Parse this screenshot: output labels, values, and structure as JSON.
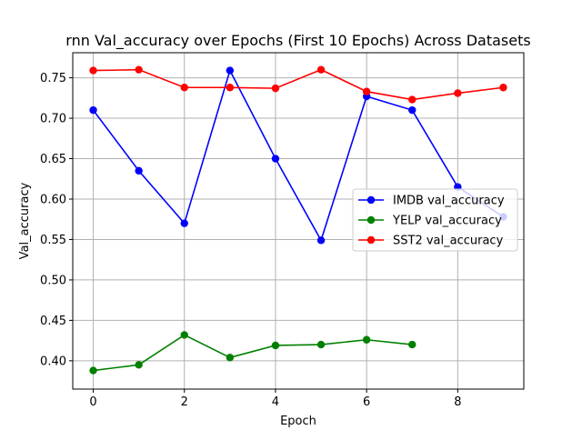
{
  "chart_data": {
    "type": "line",
    "title": "rnn Val_accuracy over Epochs (First 10 Epochs) Across Datasets",
    "xlabel": "Epoch",
    "ylabel": "Val_accuracy",
    "xlim": [
      -0.45,
      9.45
    ],
    "ylim": [
      0.365,
      0.781
    ],
    "xticks": [
      0,
      2,
      4,
      6,
      8
    ],
    "yticks": [
      0.4,
      0.45,
      0.5,
      0.55,
      0.6,
      0.65,
      0.7,
      0.75
    ],
    "grid": true,
    "legend_position": "center-right",
    "series": [
      {
        "name": "IMDB val_accuracy",
        "color": "#0000ff",
        "x": [
          0,
          1,
          2,
          3,
          4,
          5,
          6,
          7,
          8,
          9
        ],
        "values": [
          0.71,
          0.635,
          0.57,
          0.759,
          0.65,
          0.549,
          0.727,
          0.71,
          0.615,
          0.578
        ]
      },
      {
        "name": "YELP val_accuracy",
        "color": "#008000",
        "x": [
          0,
          1,
          2,
          3,
          4,
          5,
          6,
          7
        ],
        "values": [
          0.388,
          0.395,
          0.432,
          0.404,
          0.419,
          0.42,
          0.426,
          0.42
        ]
      },
      {
        "name": "SST2 val_accuracy",
        "color": "#ff0000",
        "x": [
          0,
          1,
          2,
          3,
          4,
          5,
          6,
          7,
          8,
          9
        ],
        "values": [
          0.759,
          0.76,
          0.738,
          0.738,
          0.737,
          0.76,
          0.733,
          0.723,
          0.731,
          0.738
        ]
      }
    ]
  }
}
